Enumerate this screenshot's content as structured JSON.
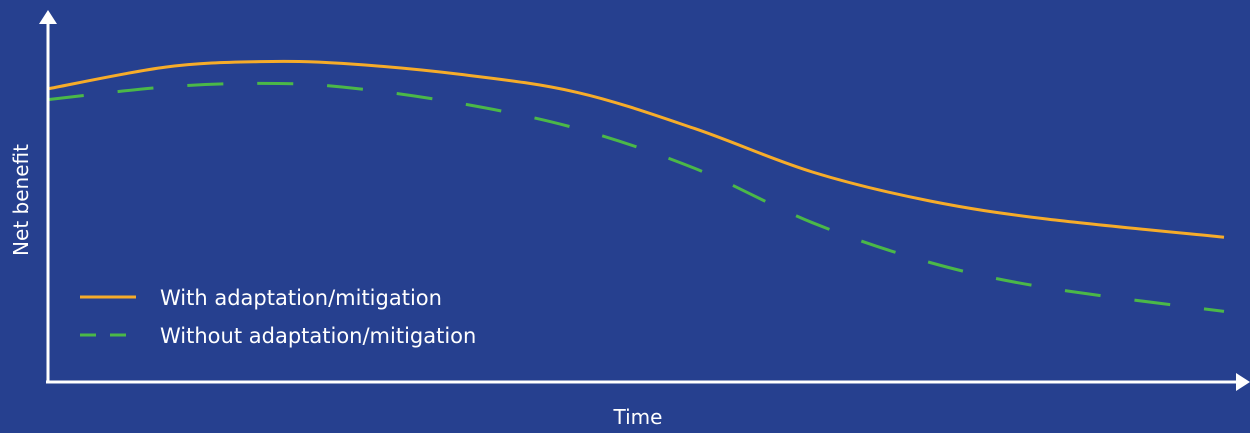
{
  "chart_data": {
    "type": "line",
    "xlabel": "Time",
    "ylabel": "Net benefit",
    "xlim": [
      0,
      100
    ],
    "ylim": [
      0,
      100
    ],
    "grid": false,
    "legend_position": "bottom-left",
    "background_color": "#26408f",
    "axis_color": "#ffffff",
    "series": [
      {
        "name": "With adaptation/mitigation",
        "color": "#f6ac2a",
        "style": "solid",
        "x": [
          0,
          10,
          18,
          25,
          35,
          45,
          55,
          65,
          75,
          85,
          100
        ],
        "y": [
          81,
          87,
          88.5,
          88,
          85,
          80,
          70,
          58,
          50,
          45,
          40
        ]
      },
      {
        "name": "Without adaptation/mitigation",
        "color": "#4bb848",
        "style": "dashed",
        "x": [
          0,
          10,
          18,
          25,
          35,
          45,
          55,
          65,
          75,
          85,
          100
        ],
        "y": [
          78,
          81.5,
          82.5,
          81.5,
          77,
          70,
          59,
          44,
          33,
          26,
          19.5
        ]
      }
    ]
  }
}
